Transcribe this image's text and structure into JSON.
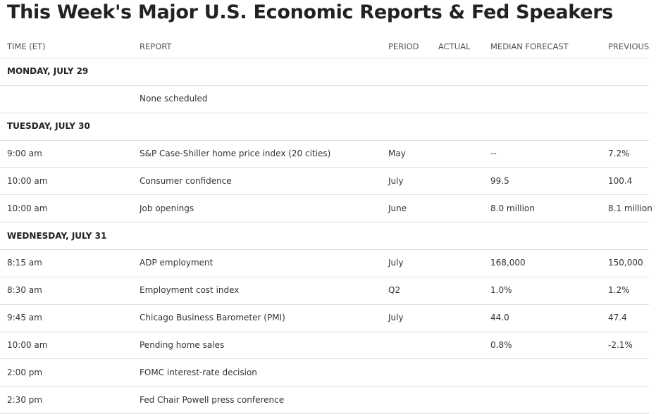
{
  "header": {
    "title": "This Week's Major U.S. Economic Reports & Fed Speakers"
  },
  "table": {
    "columns": [
      "TIME (ET)",
      "REPORT",
      "PERIOD",
      "ACTUAL",
      "MEDIAN FORECAST",
      "PREVIOUS"
    ],
    "sections": [
      {
        "day": "MONDAY, JULY 29",
        "rows": [
          {
            "report": "None scheduled"
          }
        ]
      },
      {
        "day": "TUESDAY, JULY 30",
        "rows": [
          {
            "time": "9:00 am",
            "report": "S&P Case-Shiller home price index (20 cities)",
            "period": "May",
            "forecast": "--",
            "previous": "7.2%"
          },
          {
            "time": "10:00 am",
            "report": "Consumer confidence",
            "period": "July",
            "forecast": "99.5",
            "previous": "100.4"
          },
          {
            "time": "10:00 am",
            "report": "Job openings",
            "period": "June",
            "forecast": "8.0 million",
            "previous": "8.1 million"
          }
        ]
      },
      {
        "day": "WEDNESDAY, JULY 31",
        "rows": [
          {
            "time": "8:15 am",
            "report": "ADP employment",
            "period": "July",
            "forecast": "168,000",
            "previous": "150,000"
          },
          {
            "time": "8:30 am",
            "report": "Employment cost index",
            "period": "Q2",
            "forecast": "1.0%",
            "previous": "1.2%"
          },
          {
            "time": "9:45 am",
            "report": "Chicago Business Barometer (PMI)",
            "period": "July",
            "forecast": "44.0",
            "previous": "47.4"
          },
          {
            "time": "10:00 am",
            "report": "Pending home sales",
            "forecast": "0.8%",
            "previous": "-2.1%"
          },
          {
            "time": "2:00 pm",
            "report": "FOMC interest-rate decision"
          },
          {
            "time": "2:30 pm",
            "report": "Fed Chair Powell press conference"
          }
        ]
      }
    ]
  }
}
